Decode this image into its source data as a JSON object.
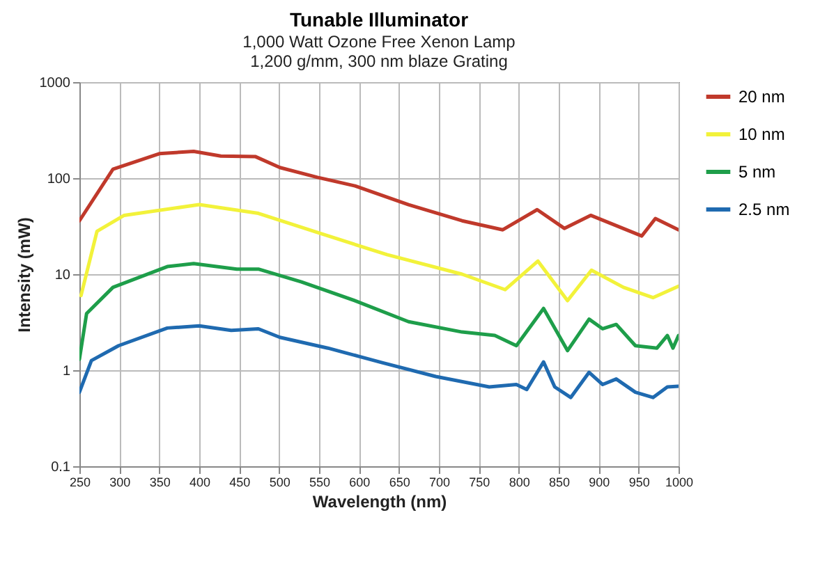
{
  "chart_data": {
    "type": "line",
    "title": "Tunable Illuminator",
    "subtitle": "1,000 Watt Ozone Free Xenon Lamp\n1,200 g/mm, 300 nm blaze Grating",
    "xlabel": "Wavelength (nm)",
    "ylabel": "Intensity (mW)",
    "log": "y",
    "grid": true,
    "legend": "right",
    "marker": "none",
    "line_style": "solid",
    "xlim": [
      250,
      1000
    ],
    "xticks": [
      250,
      300,
      350,
      400,
      450,
      500,
      550,
      600,
      650,
      700,
      750,
      800,
      850,
      900,
      950,
      1000
    ],
    "ylim": [
      0.1,
      1000
    ],
    "yticks": [
      0.1,
      1,
      10,
      100,
      1000
    ],
    "series": [
      {
        "name": "20 nm",
        "color": "#c0392b",
        "x": [
          250,
          292,
          350,
          393,
          427,
          470,
          501,
          548,
          595,
          662,
          729,
          780,
          823,
          857,
          890,
          954,
          971,
          1000
        ],
        "values": [
          36,
          124,
          180,
          190,
          170,
          168,
          129,
          102,
          83,
          53,
          36,
          29,
          47,
          30,
          41,
          25,
          38,
          29
        ]
      },
      {
        "name": "10 nm",
        "color": "#f2f23a",
        "x": [
          252,
          272,
          306,
          400,
          474,
          555,
          635,
          729,
          783,
          824,
          861,
          891,
          931,
          968,
          1000
        ],
        "values": [
          6,
          28,
          41,
          53,
          43,
          26,
          16,
          10,
          6.9,
          13.7,
          5.3,
          11,
          7.3,
          5.7,
          7.5
        ]
      },
      {
        "name": "5 nm",
        "color": "#1e9e4a",
        "x": [
          250,
          259,
          292,
          360,
          393,
          447,
          474,
          528,
          595,
          662,
          729,
          770,
          797,
          831,
          861,
          888,
          905,
          922,
          946,
          973,
          986,
          993,
          1000
        ],
        "values": [
          1.3,
          3.9,
          7.3,
          12,
          12.9,
          11.3,
          11.3,
          8.3,
          5.3,
          3.2,
          2.5,
          2.3,
          1.8,
          4.4,
          1.6,
          3.4,
          2.7,
          3.0,
          1.8,
          1.7,
          2.3,
          1.7,
          2.3
        ]
      },
      {
        "name": "2.5 nm",
        "color": "#1f6ab0",
        "x": [
          250,
          265,
          299,
          360,
          400,
          440,
          474,
          501,
          561,
          629,
          696,
          763,
          797,
          810,
          831,
          845,
          865,
          888,
          905,
          922,
          946,
          968,
          986,
          1000
        ],
        "values": [
          0.59,
          1.26,
          1.8,
          2.75,
          2.9,
          2.6,
          2.7,
          2.2,
          1.7,
          1.2,
          0.86,
          0.67,
          0.71,
          0.63,
          1.22,
          0.67,
          0.52,
          0.95,
          0.71,
          0.81,
          0.59,
          0.52,
          0.67,
          0.68
        ]
      }
    ]
  }
}
